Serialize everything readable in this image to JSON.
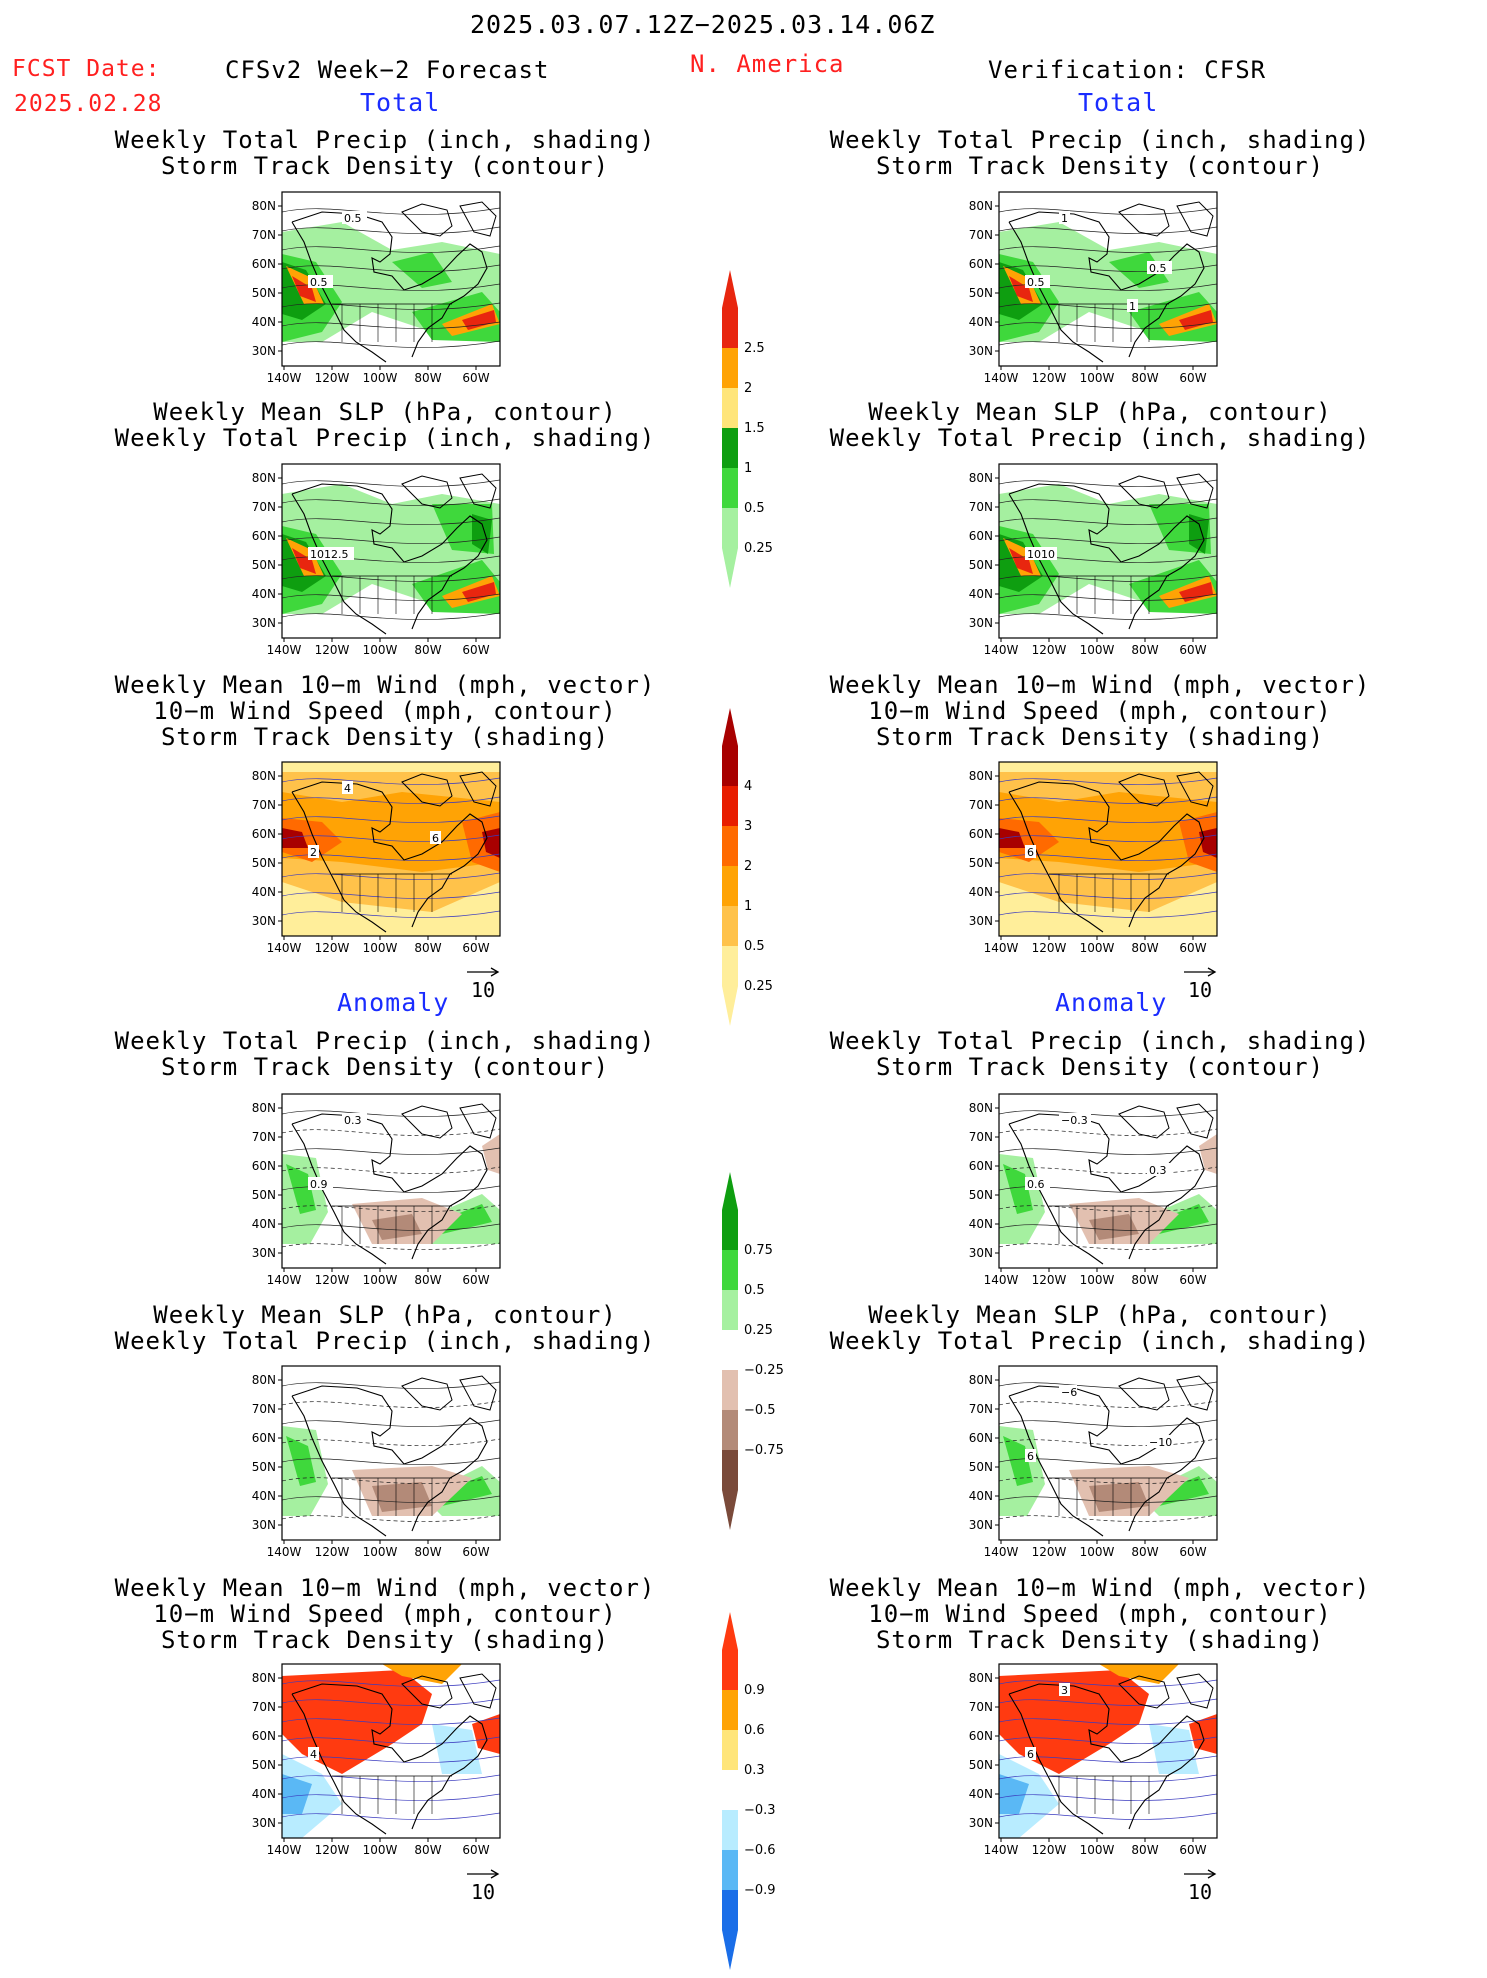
{
  "header": {
    "period": "2025.03.07.12Z−2025.03.14.06Z",
    "fcst_label": "FCST Date:",
    "fcst_date": "2025.02.28",
    "model": "CFSv2 Week−2 Forecast",
    "region": "N. America",
    "verification": "Verification: CFSR"
  },
  "sections": {
    "total": "Total",
    "anomaly": "Anomaly"
  },
  "titles": {
    "precip_storm": [
      "Weekly Total Precip (inch, shading)",
      "Storm Track Density (contour)"
    ],
    "slp_precip": [
      "Weekly Mean SLP (hPa, contour)",
      "Weekly Total Precip (inch, shading)"
    ],
    "wind_storm": [
      "Weekly Mean 10−m Wind (mph, vector)",
      "10−m Wind Speed (mph, contour)",
      "Storm Track Density (shading)"
    ]
  },
  "axes": {
    "lat_labels": [
      "80N",
      "70N",
      "60N",
      "50N",
      "40N",
      "30N"
    ],
    "lon_labels": [
      "140W",
      "120W",
      "100W",
      "80W",
      "60W"
    ]
  },
  "vector_ref": "10",
  "colorbars": {
    "precip_total": {
      "labels": [
        "2.5",
        "2",
        "1.5",
        "1",
        "0.5",
        "0.25"
      ],
      "colors": [
        "#e8260f",
        "#ffa305",
        "#ffe57a",
        "#0e9e10",
        "#3fd83c",
        "#a5f0a0"
      ]
    },
    "storm_total": {
      "labels": [
        "4",
        "3",
        "2",
        "1",
        "0.5",
        "0.25"
      ],
      "colors": [
        "#a80000",
        "#e81d00",
        "#ff6a00",
        "#ffa305",
        "#ffc24a",
        "#ffee9a"
      ]
    },
    "precip_anom": {
      "labels": [
        "0.75",
        "0.5",
        "0.25",
        "−0.25",
        "−0.5",
        "−0.75"
      ],
      "colors": [
        "#0e9e10",
        "#3fd83c",
        "#a5f0a0",
        "#ffffff",
        "#e2c0b0",
        "#b38a78",
        "#7a4a3a"
      ]
    },
    "storm_anom": {
      "labels": [
        "0.9",
        "0.6",
        "0.3",
        "−0.3",
        "−0.6",
        "−0.9"
      ],
      "colors": [
        "#ff3a10",
        "#ffa305",
        "#ffe57a",
        "#ffffff",
        "#b8ecff",
        "#5ab8f5",
        "#1a6ee8"
      ]
    }
  },
  "panel_annotations": {
    "fc_precip_total": [
      "0.5",
      "0.5"
    ],
    "ob_precip_total": [
      "0.5",
      "1",
      "0.5",
      "1"
    ],
    "fc_slp_total": [
      "1012.5"
    ],
    "ob_slp_total": [
      "1010"
    ],
    "fc_wind_total": [
      "2",
      "4",
      "6"
    ],
    "ob_wind_total": [
      "6"
    ],
    "fc_precip_anom": [
      "0.9",
      "0.3"
    ],
    "ob_precip_anom": [
      "0.6",
      "−0.3",
      "0.3"
    ],
    "ob_slp_anom": [
      "6",
      "−6",
      "−10"
    ],
    "fc_wind_anom": [
      "4"
    ],
    "ob_wind_anom": [
      "6",
      "3"
    ]
  },
  "colors": {
    "forecast_red": "#ff2020",
    "section_blue": "#1a2cff"
  }
}
